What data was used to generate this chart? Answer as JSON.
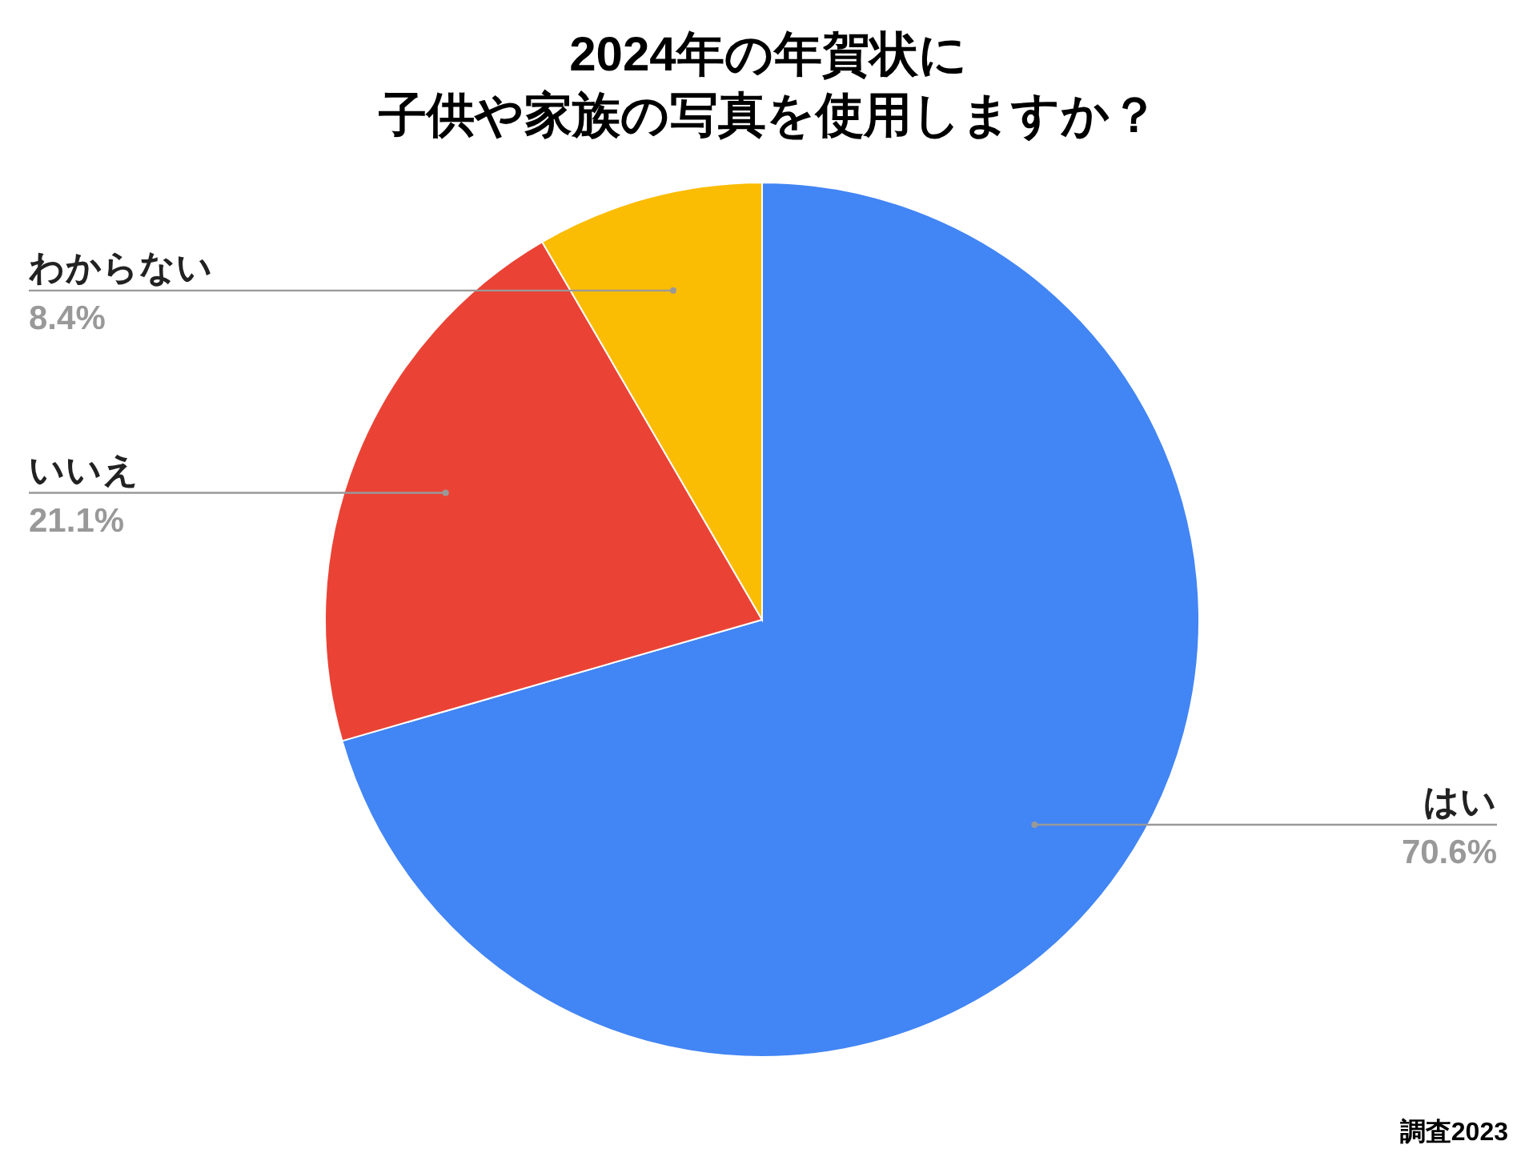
{
  "chart_data": {
    "type": "pie",
    "title": "2024年の年賀状に",
    "subtitle": "子供や家族の写真を使用しますか？",
    "legend": false,
    "categories": [
      "はい",
      "いいえ",
      "わからない"
    ],
    "values": [
      70.6,
      21.1,
      8.4
    ],
    "value_labels": [
      "70.6%",
      "21.1%",
      "8.4%"
    ],
    "colors": [
      "#4285f4",
      "#ea4335",
      "#fbbc04"
    ],
    "annotations": [
      "調査2023"
    ]
  }
}
